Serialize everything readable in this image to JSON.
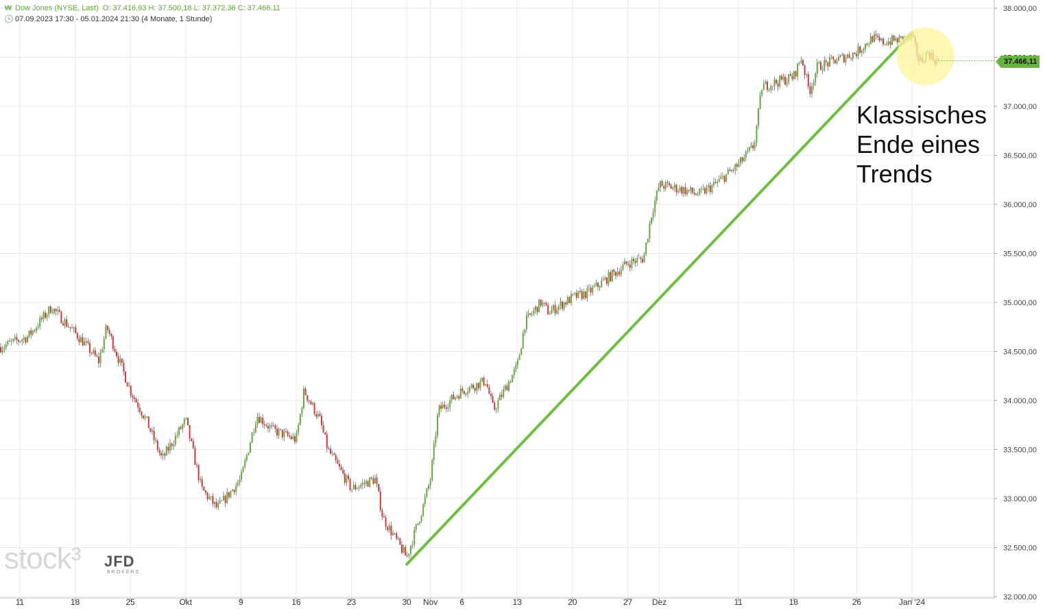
{
  "header": {
    "instrument": "Dow Jones (NYSE, Last)",
    "ohlc": "O: 37.416,93  H: 37.500,18  L: 37.372,36  C: 37.466,11",
    "range": "07.09.2023 17:30 - 05.01.2024 21:30   (4 Monate, 1 Stunde)"
  },
  "last_price": "37.466,11",
  "annotation": "Klassisches\nEnde eines\nTrends",
  "logo": {
    "stock": "stock³",
    "jfd": "JFD",
    "brokers": "BROKERS"
  },
  "colors": {
    "up": "#5fae35",
    "down": "#d9343a",
    "trendline": "#6cbf3f",
    "highlight": "#fdf39a",
    "grid": "#e8e8e8"
  },
  "chart_data": {
    "type": "candlestick",
    "y_tick_labels": [
      "32.000,00",
      "32.500,00",
      "33.000,00",
      "33.500,00",
      "34.000,00",
      "34.500,00",
      "35.000,00",
      "35.500,00",
      "36.000,00",
      "36.500,00",
      "37.000,00",
      "37.500,00",
      "38.000,00"
    ],
    "y_ticks": [
      32000,
      32500,
      33000,
      33500,
      34000,
      34500,
      35000,
      35500,
      36000,
      36500,
      37000,
      37500,
      38000
    ],
    "ylim": [
      32000,
      38100
    ],
    "x_ticks": [
      {
        "date": "2023-09-11",
        "label": "11"
      },
      {
        "date": "2023-09-18",
        "label": "18"
      },
      {
        "date": "2023-09-25",
        "label": "25"
      },
      {
        "date": "2023-10-02",
        "label": "Okt"
      },
      {
        "date": "2023-10-09",
        "label": "9"
      },
      {
        "date": "2023-10-16",
        "label": "16"
      },
      {
        "date": "2023-10-23",
        "label": "23"
      },
      {
        "date": "2023-10-30",
        "label": "30"
      },
      {
        "date": "2023-11-02",
        "label": "Nov"
      },
      {
        "date": "2023-11-06",
        "label": "6"
      },
      {
        "date": "2023-11-13",
        "label": "13"
      },
      {
        "date": "2023-11-20",
        "label": "20"
      },
      {
        "date": "2023-11-27",
        "label": "27"
      },
      {
        "date": "2023-12-01",
        "label": "Dez"
      },
      {
        "date": "2023-12-11",
        "label": "11"
      },
      {
        "date": "2023-12-18",
        "label": "18"
      },
      {
        "date": "2023-12-26",
        "label": "26"
      },
      {
        "date": "2024-01-02",
        "label": "Jan '24"
      }
    ],
    "price_path": [
      {
        "date": "2023-09-07",
        "close": 34500
      },
      {
        "date": "2023-09-12",
        "close": 34650
      },
      {
        "date": "2023-09-15",
        "close": 34950
      },
      {
        "date": "2023-09-19",
        "close": 34600
      },
      {
        "date": "2023-09-21",
        "close": 34400
      },
      {
        "date": "2023-09-22",
        "close": 34750
      },
      {
        "date": "2023-09-25",
        "close": 34100
      },
      {
        "date": "2023-09-27",
        "close": 33800
      },
      {
        "date": "2023-09-29",
        "close": 33400
      },
      {
        "date": "2023-10-02",
        "close": 33800
      },
      {
        "date": "2023-10-04",
        "close": 33100
      },
      {
        "date": "2023-10-06",
        "close": 32900
      },
      {
        "date": "2023-10-09",
        "close": 33200
      },
      {
        "date": "2023-10-11",
        "close": 33850
      },
      {
        "date": "2023-10-13",
        "close": 33700
      },
      {
        "date": "2023-10-16",
        "close": 33600
      },
      {
        "date": "2023-10-17",
        "close": 34100
      },
      {
        "date": "2023-10-19",
        "close": 33800
      },
      {
        "date": "2023-10-20",
        "close": 33500
      },
      {
        "date": "2023-10-23",
        "close": 33100
      },
      {
        "date": "2023-10-26",
        "close": 33200
      },
      {
        "date": "2023-10-27",
        "close": 32800
      },
      {
        "date": "2023-10-30",
        "close": 32400
      },
      {
        "date": "2023-11-01",
        "close": 32900
      },
      {
        "date": "2023-11-02",
        "close": 33200
      },
      {
        "date": "2023-11-03",
        "close": 33900
      },
      {
        "date": "2023-11-06",
        "close": 34100
      },
      {
        "date": "2023-11-09",
        "close": 34200
      },
      {
        "date": "2023-11-10",
        "close": 33900
      },
      {
        "date": "2023-11-13",
        "close": 34350
      },
      {
        "date": "2023-11-14",
        "close": 34800
      },
      {
        "date": "2023-11-16",
        "close": 35000
      },
      {
        "date": "2023-11-17",
        "close": 34900
      },
      {
        "date": "2023-11-20",
        "close": 35050
      },
      {
        "date": "2023-11-22",
        "close": 35100
      },
      {
        "date": "2023-11-27",
        "close": 35400
      },
      {
        "date": "2023-11-29",
        "close": 35450
      },
      {
        "date": "2023-11-30",
        "close": 35900
      },
      {
        "date": "2023-12-01",
        "close": 36200
      },
      {
        "date": "2023-12-04",
        "close": 36150
      },
      {
        "date": "2023-12-06",
        "close": 36100
      },
      {
        "date": "2023-12-08",
        "close": 36200
      },
      {
        "date": "2023-12-11",
        "close": 36400
      },
      {
        "date": "2023-12-13",
        "close": 36600
      },
      {
        "date": "2023-12-14",
        "close": 37200
      },
      {
        "date": "2023-12-18",
        "close": 37300
      },
      {
        "date": "2023-12-19",
        "close": 37500
      },
      {
        "date": "2023-12-20",
        "close": 37150
      },
      {
        "date": "2023-12-21",
        "close": 37400
      },
      {
        "date": "2023-12-26",
        "close": 37550
      },
      {
        "date": "2023-12-28",
        "close": 37700
      },
      {
        "date": "2023-12-29",
        "close": 37650
      },
      {
        "date": "2024-01-02",
        "close": 37700
      },
      {
        "date": "2024-01-03",
        "close": 37450
      },
      {
        "date": "2024-01-04",
        "close": 37550
      },
      {
        "date": "2024-01-05",
        "close": 37466
      }
    ],
    "trendline": [
      {
        "date": "2023-10-30",
        "value": 32330
      },
      {
        "date": "2024-01-02",
        "value": 37750
      }
    ],
    "highlight_circle": {
      "date": "2024-01-03",
      "value": 37510
    }
  }
}
